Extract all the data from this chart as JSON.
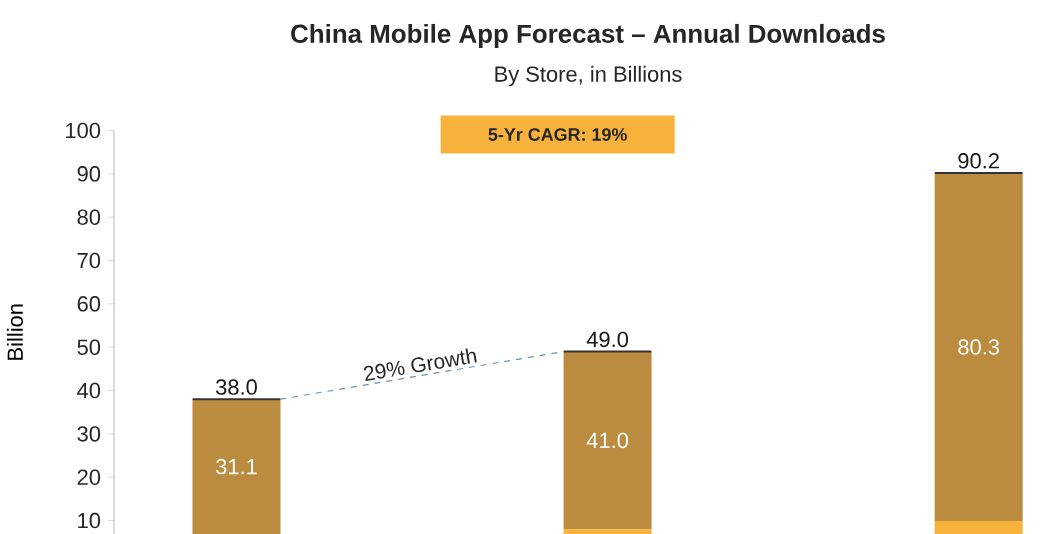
{
  "chart_data": {
    "type": "bar",
    "stacked": true,
    "title": "China Mobile App Forecast – Annual Downloads",
    "subtitle": "By Store, in Billions",
    "ylabel": "Billion",
    "categories": [
      null,
      null,
      null
    ],
    "series": [
      {
        "color": "#f7b23b",
        "values": [
          6.9,
          8.0,
          9.9
        ]
      },
      {
        "color": "#bb8c40",
        "values": [
          31.1,
          41.0,
          80.3
        ],
        "value_labels": [
          "31.1",
          "41.0",
          "80.3"
        ]
      }
    ],
    "totals": [
      "38.0",
      "49.0",
      "90.2"
    ],
    "annotations": [
      "29% Growth",
      "5-Yr CAGR: 19%"
    ],
    "ylim": [
      6.9,
      100
    ],
    "yticks": [
      10,
      20,
      30,
      40,
      50,
      60,
      70,
      80,
      90,
      100
    ],
    "tick_labels": "y",
    "grid": false
  }
}
